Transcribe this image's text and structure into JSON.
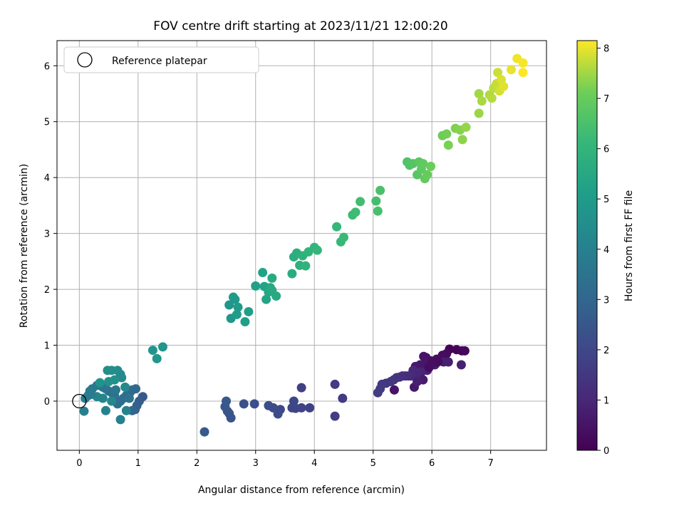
{
  "chart_data": {
    "type": "scatter",
    "title": "FOV centre drift starting at 2023/11/21 12:00:20",
    "xlabel": "Angular distance from reference (arcmin)",
    "ylabel": "Rotation from reference (arcmin)",
    "xlim": [
      -0.38,
      7.95
    ],
    "ylim": [
      -0.88,
      6.45
    ],
    "xticks": [
      0,
      1,
      2,
      3,
      4,
      5,
      6,
      7
    ],
    "yticks": [
      0,
      1,
      2,
      3,
      4,
      5,
      6
    ],
    "grid": true,
    "legend": {
      "label": "Reference platepar",
      "placement": "top-left",
      "marker": "open-circle"
    },
    "reference_point": {
      "x": 0,
      "y": 0
    },
    "colorbar": {
      "label": "Hours from first FF file",
      "colormap": "viridis",
      "range": [
        0,
        8.15
      ],
      "ticks": [
        0,
        1,
        2,
        3,
        4,
        5,
        6,
        7,
        8
      ]
    },
    "series": [
      {
        "points": [
          [
            6.3,
            0.93
          ],
          [
            6.42,
            0.92
          ],
          [
            6.51,
            0.9
          ],
          [
            6.56,
            0.9
          ],
          [
            6.25,
            0.85
          ],
          [
            6.18,
            0.82
          ],
          [
            6.08,
            0.75
          ],
          [
            5.98,
            0.72
          ],
          [
            5.9,
            0.78
          ],
          [
            5.86,
            0.8
          ],
          [
            5.88,
            0.67
          ],
          [
            5.8,
            0.65
          ],
          [
            5.72,
            0.62
          ],
          [
            6.05,
            0.65
          ],
          [
            6.2,
            0.7
          ],
          [
            6.28,
            0.7
          ],
          [
            6.5,
            0.65
          ],
          [
            5.92,
            0.55
          ],
          [
            5.82,
            0.52
          ],
          [
            5.75,
            0.5
          ],
          [
            5.68,
            0.55
          ],
          [
            5.65,
            0.45
          ],
          [
            5.6,
            0.45
          ],
          [
            5.55,
            0.45
          ],
          [
            5.5,
            0.45
          ],
          [
            5.45,
            0.43
          ],
          [
            5.4,
            0.42
          ],
          [
            5.35,
            0.38
          ],
          [
            5.3,
            0.35
          ],
          [
            5.22,
            0.32
          ],
          [
            5.15,
            0.3
          ],
          [
            5.12,
            0.22
          ],
          [
            5.08,
            0.15
          ],
          [
            5.36,
            0.2
          ],
          [
            5.7,
            0.25
          ],
          [
            5.85,
            0.38
          ],
          [
            5.75,
            0.35
          ],
          [
            5.95,
            0.6
          ],
          [
            6.1,
            0.7
          ],
          [
            6.0,
            0.68
          ]
        ],
        "hours": [
          0.05,
          0.1,
          0.15,
          0.2,
          0.25,
          0.3,
          0.35,
          0.4,
          0.45,
          0.5,
          0.55,
          0.6,
          0.65,
          0.7,
          0.75,
          0.8,
          0.85,
          0.9,
          0.95,
          1.0,
          1.05,
          1.1,
          1.15,
          1.2,
          1.25,
          1.3,
          1.35,
          1.4,
          1.45,
          1.5,
          1.55,
          1.6,
          1.65,
          0.5,
          0.6,
          0.7,
          0.8,
          0.3,
          0.25,
          0.35
        ]
      },
      {
        "points": [
          [
            4.48,
            0.05
          ],
          [
            4.35,
            0.3
          ],
          [
            4.35,
            -0.27
          ],
          [
            3.78,
            0.24
          ],
          [
            3.92,
            -0.12
          ],
          [
            3.78,
            -0.12
          ],
          [
            3.68,
            -0.13
          ],
          [
            3.62,
            -0.12
          ],
          [
            3.65,
            0.0
          ],
          [
            3.42,
            -0.15
          ],
          [
            3.38,
            -0.23
          ],
          [
            3.3,
            -0.12
          ],
          [
            3.22,
            -0.08
          ],
          [
            2.98,
            -0.05
          ],
          [
            2.8,
            -0.05
          ],
          [
            2.58,
            -0.3
          ],
          [
            2.55,
            -0.22
          ],
          [
            2.52,
            -0.18
          ],
          [
            2.48,
            -0.1
          ],
          [
            2.5,
            0.0
          ],
          [
            2.13,
            -0.55
          ]
        ],
        "hours": [
          1.6,
          1.65,
          1.7,
          1.75,
          1.8,
          1.85,
          1.9,
          1.95,
          2.0,
          2.05,
          2.1,
          2.15,
          2.2,
          2.25,
          2.3,
          2.35,
          2.4,
          2.45,
          2.5,
          2.55,
          2.6
        ]
      },
      {
        "points": [
          [
            1.08,
            0.08
          ],
          [
            1.02,
            0.0
          ],
          [
            0.98,
            -0.08
          ],
          [
            0.95,
            -0.15
          ],
          [
            0.9,
            -0.17
          ],
          [
            0.96,
            0.22
          ],
          [
            0.9,
            0.2
          ],
          [
            0.86,
            0.15
          ],
          [
            0.8,
            0.1
          ],
          [
            0.75,
            0.05
          ],
          [
            0.7,
            0.0
          ],
          [
            0.65,
            -0.05
          ],
          [
            0.6,
            0.1
          ],
          [
            0.55,
            0.15
          ],
          [
            0.5,
            0.18
          ],
          [
            0.45,
            0.22
          ],
          [
            0.4,
            0.25
          ],
          [
            0.35,
            0.3
          ],
          [
            0.3,
            0.28
          ],
          [
            0.22,
            0.22
          ],
          [
            0.18,
            0.18
          ],
          [
            0.15,
            0.1
          ],
          [
            0.1,
            0.05
          ],
          [
            0.08,
            -0.18
          ],
          [
            0.45,
            -0.17
          ],
          [
            0.7,
            -0.33
          ],
          [
            0.8,
            -0.17
          ],
          [
            0.4,
            0.05
          ],
          [
            0.3,
            0.08
          ],
          [
            0.55,
            0.0
          ],
          [
            0.78,
            0.25
          ],
          [
            0.72,
            0.42
          ],
          [
            0.7,
            0.48
          ],
          [
            0.65,
            0.55
          ],
          [
            0.55,
            0.55
          ],
          [
            0.48,
            0.55
          ],
          [
            0.6,
            0.38
          ],
          [
            0.5,
            0.35
          ],
          [
            0.35,
            0.33
          ],
          [
            1.25,
            0.91
          ],
          [
            1.42,
            0.97
          ],
          [
            1.32,
            0.76
          ],
          [
            0.2,
            0.12
          ],
          [
            0.85,
            0.05
          ],
          [
            0.62,
            0.2
          ]
        ],
        "hours": [
          2.6,
          2.7,
          2.8,
          2.9,
          3.0,
          3.05,
          3.1,
          3.15,
          3.2,
          3.25,
          3.3,
          3.35,
          3.4,
          3.45,
          3.5,
          3.55,
          3.6,
          3.65,
          3.7,
          3.75,
          3.8,
          3.85,
          3.9,
          3.95,
          4.0,
          4.05,
          4.1,
          4.15,
          4.2,
          4.25,
          4.3,
          4.35,
          4.4,
          4.45,
          4.5,
          4.55,
          4.6,
          4.65,
          4.7,
          4.75,
          4.8,
          4.8,
          3.8,
          3.5,
          3.6
        ]
      },
      {
        "points": [
          [
            2.55,
            1.72
          ],
          [
            2.58,
            1.48
          ],
          [
            2.65,
            1.82
          ],
          [
            2.62,
            1.86
          ],
          [
            2.7,
            1.68
          ],
          [
            2.68,
            1.55
          ],
          [
            2.82,
            1.42
          ],
          [
            2.88,
            1.6
          ],
          [
            3.0,
            2.06
          ],
          [
            3.12,
            2.3
          ],
          [
            3.15,
            2.05
          ],
          [
            3.18,
            1.82
          ],
          [
            3.22,
            1.95
          ],
          [
            3.25,
            2.03
          ],
          [
            3.28,
            1.98
          ],
          [
            3.35,
            1.88
          ],
          [
            3.28,
            2.2
          ],
          [
            3.62,
            2.28
          ],
          [
            3.65,
            2.58
          ],
          [
            3.7,
            2.65
          ],
          [
            3.75,
            2.43
          ],
          [
            3.8,
            2.6
          ],
          [
            3.85,
            2.42
          ],
          [
            3.9,
            2.67
          ],
          [
            4.0,
            2.75
          ],
          [
            4.05,
            2.7
          ],
          [
            4.38,
            3.12
          ],
          [
            4.45,
            2.85
          ],
          [
            4.5,
            2.93
          ],
          [
            4.65,
            3.33
          ],
          [
            4.7,
            3.38
          ],
          [
            4.78,
            3.57
          ],
          [
            5.05,
            3.58
          ],
          [
            5.08,
            3.4
          ],
          [
            5.12,
            3.77
          ]
        ],
        "hours": [
          4.8,
          4.85,
          4.9,
          4.95,
          5.0,
          5.05,
          5.1,
          5.15,
          5.2,
          5.25,
          5.3,
          5.35,
          5.4,
          5.45,
          5.5,
          5.55,
          5.6,
          5.65,
          5.7,
          5.75,
          5.8,
          5.85,
          5.9,
          5.95,
          6.0,
          6.05,
          6.1,
          6.15,
          6.2,
          6.25,
          6.3,
          6.35,
          6.4,
          6.45,
          6.5
        ]
      },
      {
        "points": [
          [
            5.58,
            4.28
          ],
          [
            5.62,
            4.22
          ],
          [
            5.68,
            4.25
          ],
          [
            5.75,
            4.05
          ],
          [
            5.78,
            4.28
          ],
          [
            5.82,
            4.15
          ],
          [
            5.85,
            4.25
          ],
          [
            5.88,
            3.98
          ],
          [
            5.92,
            4.05
          ],
          [
            5.98,
            4.2
          ],
          [
            6.18,
            4.75
          ],
          [
            6.25,
            4.78
          ],
          [
            6.28,
            4.58
          ],
          [
            6.4,
            4.88
          ],
          [
            6.48,
            4.85
          ],
          [
            6.52,
            4.68
          ],
          [
            6.58,
            4.9
          ],
          [
            6.8,
            5.15
          ],
          [
            6.8,
            5.5
          ],
          [
            6.85,
            5.37
          ],
          [
            6.98,
            5.48
          ],
          [
            7.02,
            5.42
          ],
          [
            7.05,
            5.6
          ],
          [
            7.1,
            5.68
          ],
          [
            7.12,
            5.88
          ],
          [
            7.15,
            5.55
          ],
          [
            7.18,
            5.75
          ],
          [
            7.22,
            5.63
          ],
          [
            7.35,
            5.93
          ],
          [
            7.45,
            6.13
          ],
          [
            7.55,
            6.05
          ],
          [
            7.55,
            5.88
          ]
        ],
        "hours": [
          6.6,
          6.65,
          6.7,
          6.75,
          6.8,
          6.85,
          6.9,
          6.95,
          7.0,
          7.05,
          7.1,
          7.15,
          7.2,
          7.25,
          7.3,
          7.35,
          7.4,
          7.45,
          7.5,
          7.55,
          7.6,
          7.65,
          7.7,
          7.75,
          7.8,
          7.85,
          7.9,
          7.95,
          8.0,
          8.05,
          8.1,
          8.15
        ]
      }
    ]
  }
}
